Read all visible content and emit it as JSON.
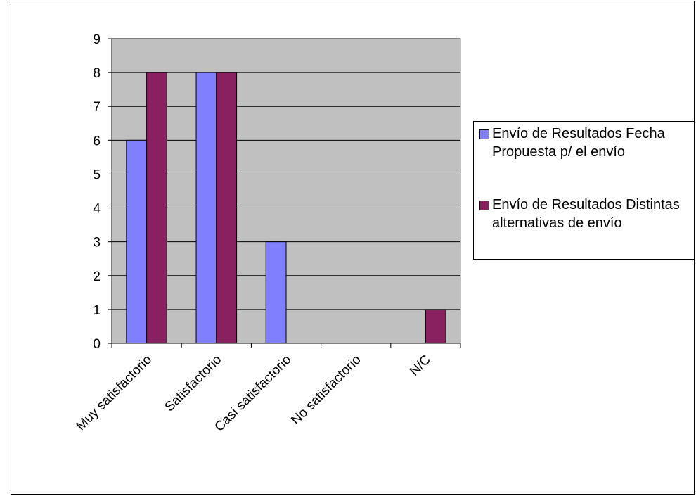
{
  "chart_data": {
    "type": "bar",
    "title": "",
    "xlabel": "",
    "ylabel": "",
    "categories": [
      "Muy satisfactorio",
      "Satisfactorio",
      "Casi satisfactorio",
      "No satisfactorio",
      "N/C"
    ],
    "series": [
      {
        "name": "Envío de Resultados Fecha Propuesta p/ el envío",
        "color": "#8080ff",
        "values": [
          6,
          8,
          3,
          0,
          0
        ]
      },
      {
        "name": "Envío de Resultados Distintas alternativas de envío",
        "color": "#892161",
        "values": [
          8,
          8,
          0,
          0,
          1
        ]
      }
    ],
    "ylim": [
      0,
      9
    ],
    "yticks": [
      0,
      1,
      2,
      3,
      4,
      5,
      6,
      7,
      8,
      9
    ],
    "grid": true,
    "plot_background": "#c0c0c0",
    "legend_position": "right"
  }
}
